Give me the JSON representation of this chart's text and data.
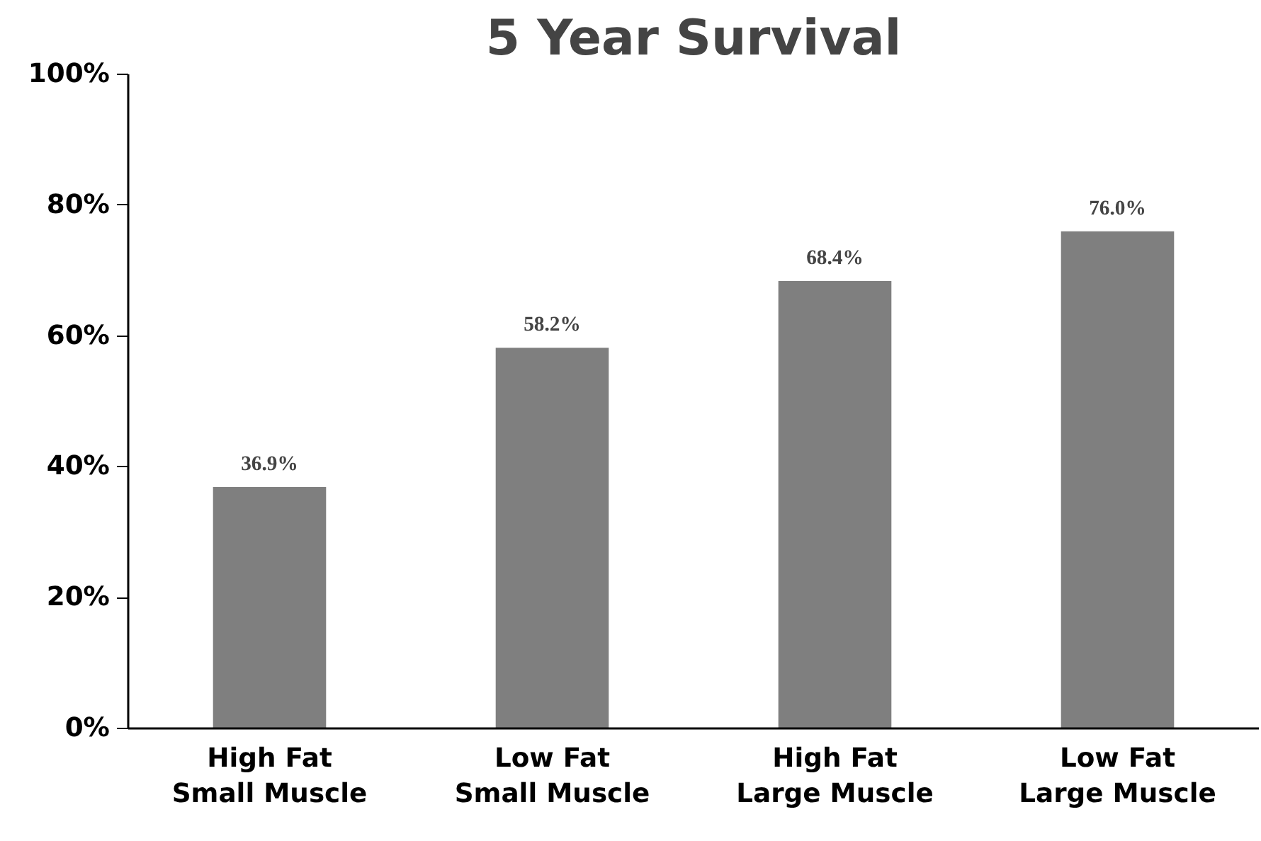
{
  "chart_data": {
    "type": "bar",
    "title": "5 Year Survival",
    "categories": [
      "High Fat\nSmall Muscle",
      "Low Fat\nSmall Muscle",
      "High Fat\nLarge Muscle",
      "Low Fat\nLarge Muscle"
    ],
    "values": [
      36.9,
      58.2,
      68.4,
      76.0
    ],
    "value_labels": [
      "36.9%",
      "58.2%",
      "68.4%",
      "76.0%"
    ],
    "color": "#7f7f7f",
    "ylim": [
      0,
      100
    ],
    "yticks": [
      {
        "value": 0,
        "label": "0%"
      },
      {
        "value": 20,
        "label": "20%"
      },
      {
        "value": 40,
        "label": "40%"
      },
      {
        "value": 60,
        "label": "60%"
      },
      {
        "value": 80,
        "label": "80%"
      },
      {
        "value": 100,
        "label": "100%"
      }
    ],
    "grid": false
  }
}
